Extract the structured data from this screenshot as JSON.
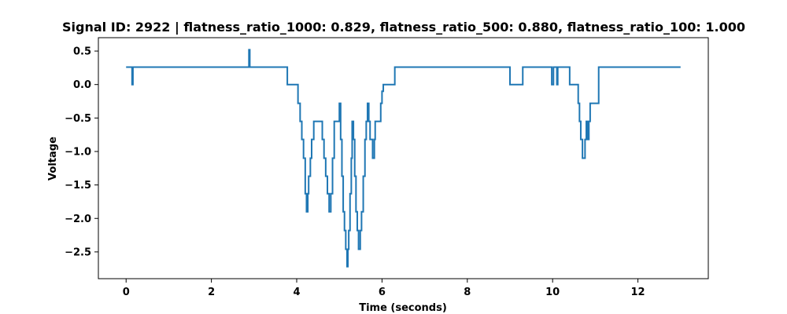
{
  "chart_data": {
    "type": "line",
    "title": "Signal ID: 2922 | flatness_ratio_1000: 0.829, flatness_ratio_500: 0.880, flatness_ratio_100: 1.000",
    "xlabel": "Time (seconds)",
    "ylabel": "Voltage",
    "xlim": [
      -0.65,
      13.65
    ],
    "ylim": [
      -2.9,
      0.7
    ],
    "x_ticks": [
      0,
      2,
      4,
      6,
      8,
      10,
      12
    ],
    "y_ticks": [
      0.5,
      0.0,
      -0.5,
      -1.0,
      -1.5,
      -2.0,
      -2.5
    ],
    "x_tick_labels": [
      "0",
      "2",
      "4",
      "6",
      "8",
      "10",
      "12"
    ],
    "y_tick_labels": [
      "0.5",
      "0.0",
      "−0.5",
      "−1.0",
      "−1.5",
      "−2.0",
      "−2.5"
    ],
    "grid": false,
    "line_color": "#1f77b4",
    "series": [
      {
        "step": true,
        "x": [
          0,
          0.14,
          0.16,
          0.18,
          2.88,
          2.9,
          2.92,
          3.78,
          4.03,
          4.08,
          4.12,
          4.16,
          4.2,
          4.23,
          4.26,
          4.28,
          4.32,
          4.35,
          4.4,
          4.6,
          4.64,
          4.68,
          4.72,
          4.76,
          4.8,
          4.84,
          4.88,
          5.0,
          5.03,
          5.06,
          5.09,
          5.12,
          5.15,
          5.18,
          5.2,
          5.22,
          5.25,
          5.28,
          5.3,
          5.33,
          5.36,
          5.39,
          5.42,
          5.45,
          5.49,
          5.52,
          5.56,
          5.6,
          5.63,
          5.66,
          5.69,
          5.72,
          5.78,
          5.82,
          5.84,
          5.97,
          6.0,
          6.03,
          6.08,
          6.3,
          9.0,
          9.3,
          9.98,
          10.02,
          10.06,
          10.1,
          10.12,
          10.4,
          10.6,
          10.63,
          10.66,
          10.7,
          10.76,
          10.79,
          10.82,
          10.85,
          10.88,
          10.9,
          11.08,
          13.0
        ],
        "y": [
          0.26,
          0.0,
          0.26,
          0.26,
          0.52,
          0.26,
          0.26,
          0.0,
          -0.28,
          -0.55,
          -0.82,
          -1.1,
          -1.63,
          -1.9,
          -1.63,
          -1.37,
          -1.1,
          -0.82,
          -0.55,
          -0.82,
          -1.1,
          -1.37,
          -1.63,
          -1.9,
          -1.63,
          -1.1,
          -0.55,
          -0.28,
          -0.82,
          -1.37,
          -1.9,
          -2.18,
          -2.46,
          -2.72,
          -2.46,
          -2.18,
          -1.63,
          -1.1,
          -0.55,
          -0.82,
          -1.37,
          -1.9,
          -2.18,
          -2.46,
          -2.18,
          -1.9,
          -1.37,
          -0.82,
          -0.55,
          -0.28,
          -0.55,
          -0.82,
          -1.1,
          -0.82,
          -0.55,
          -0.28,
          -0.1,
          0.0,
          0.0,
          0.26,
          0.0,
          0.26,
          0.0,
          0.26,
          0.26,
          0.0,
          0.26,
          0.0,
          -0.28,
          -0.55,
          -0.82,
          -1.1,
          -0.82,
          -0.55,
          -0.82,
          -0.55,
          -0.28,
          -0.28,
          0.26,
          0.26
        ]
      }
    ]
  }
}
